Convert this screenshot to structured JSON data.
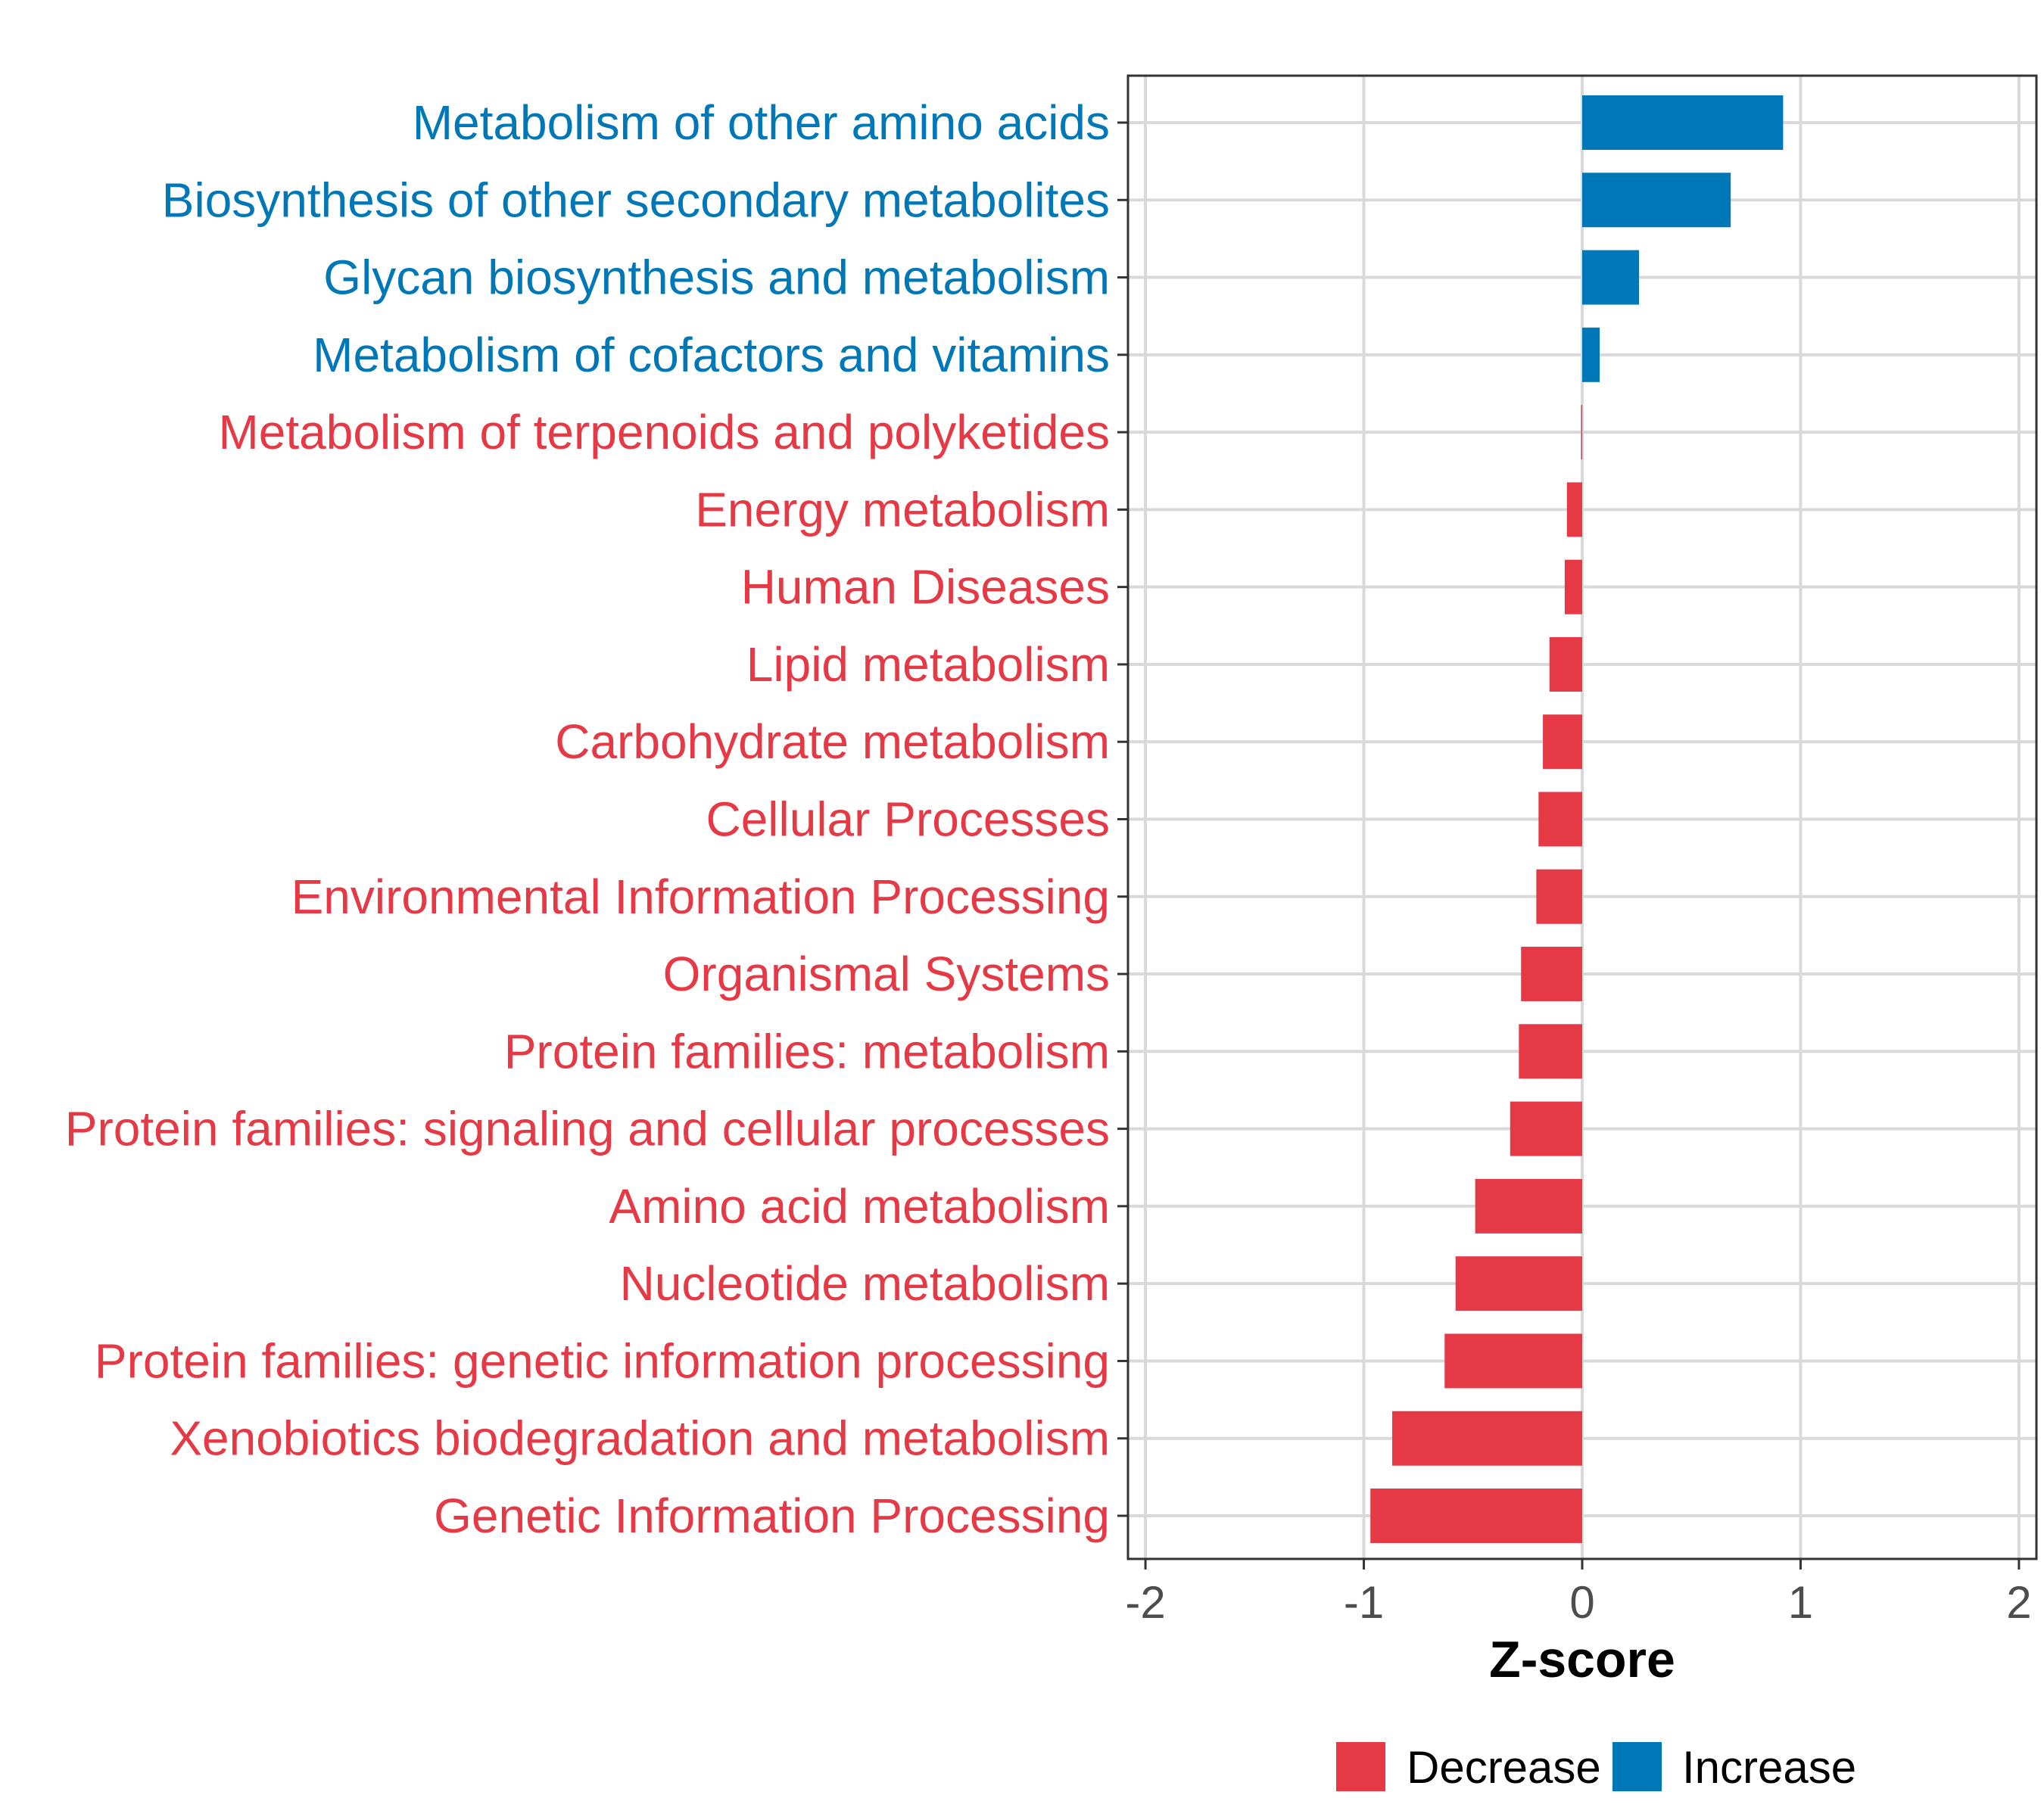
{
  "chart_data": {
    "type": "bar",
    "orientation": "horizontal",
    "xlabel": "Z-score",
    "ylabel": "",
    "xlim": [
      -2.08,
      2.08
    ],
    "xticks": [
      -2,
      -1,
      0,
      1,
      2
    ],
    "xtick_labels": [
      "-2",
      "-1",
      "0",
      "1",
      "2"
    ],
    "grid": true,
    "legend_position": "bottom",
    "colors": {
      "Decrease": "#e63946",
      "Increase": "#0077b6"
    },
    "legend": [
      {
        "key": "Decrease",
        "label": "Decrease"
      },
      {
        "key": "Increase",
        "label": "Increase"
      }
    ],
    "categories": [
      "Metabolism of other amino acids",
      "Biosynthesis of other secondary metabolites",
      "Glycan biosynthesis and metabolism",
      "Metabolism of cofactors and vitamins",
      "Metabolism of terpenoids and polyketides",
      "Energy metabolism",
      "Human Diseases",
      "Lipid metabolism",
      "Carbohydrate metabolism",
      "Cellular Processes",
      "Environmental Information Processing",
      "Organismal Systems",
      "Protein families: metabolism",
      "Protein families: signaling and cellular processes",
      "Amino acid metabolism",
      "Nucleotide metabolism",
      "Protein families: genetic information processing",
      "Xenobiotics biodegradation and metabolism",
      "Genetic Information Processing"
    ],
    "values": [
      0.92,
      0.68,
      0.26,
      0.08,
      -0.005,
      -0.07,
      -0.08,
      -0.15,
      -0.18,
      -0.2,
      -0.21,
      -0.28,
      -0.29,
      -0.33,
      -0.49,
      -0.58,
      -0.63,
      -0.87,
      -0.97
    ],
    "groups": [
      "Increase",
      "Increase",
      "Increase",
      "Increase",
      "Decrease",
      "Decrease",
      "Decrease",
      "Decrease",
      "Decrease",
      "Decrease",
      "Decrease",
      "Decrease",
      "Decrease",
      "Decrease",
      "Decrease",
      "Decrease",
      "Decrease",
      "Decrease",
      "Decrease"
    ]
  }
}
